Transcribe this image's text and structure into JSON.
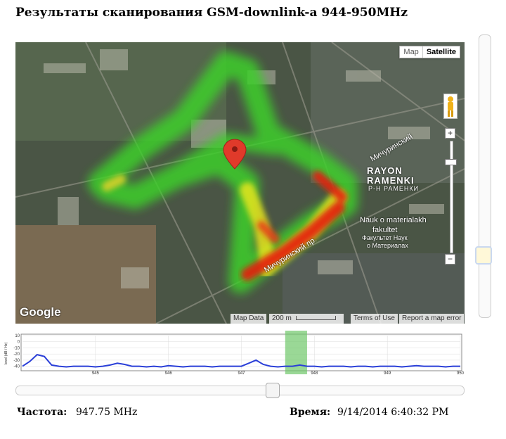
{
  "title": "Результаты сканирования GSM-downlink-a 944-950MHz",
  "map": {
    "type_map": "Map",
    "type_satellite": "Satellite",
    "google": "Google",
    "map_data": "Map Data",
    "scale": "200 m",
    "terms": "Terms of Use",
    "report": "Report a map error",
    "labels": {
      "district1": "RAYON",
      "district2": "RAMENKI",
      "district3": "Р-Н РАМЕНКИ",
      "street1": "Мичуринский",
      "street2": "Мичуринский пр.",
      "poi1": "Nauk o materialakh",
      "poi2": "fakultet",
      "poi3": "Факультет Наук",
      "poi4": "о Материалах"
    },
    "colors": {
      "low": "#3ecf2a",
      "mid": "#f0e81a",
      "high": "#e51a10",
      "marker": "#e03a2a"
    }
  },
  "chart_data": {
    "type": "line",
    "ylabel": "level (dB / Hz)",
    "yticks": [
      10,
      0,
      -10,
      -20,
      -30,
      -40
    ],
    "xticks": [
      945,
      946,
      947,
      948,
      949,
      950
    ],
    "xtick_labels": [
      "945",
      "946",
      "947",
      "948",
      "949",
      "950"
    ],
    "xlim": [
      944,
      950
    ],
    "ylim": [
      -45,
      10
    ],
    "highlight": [
      947.6,
      947.9
    ],
    "color": "#2a3fd8",
    "series": [
      {
        "x": [
          944.0,
          944.1,
          944.2,
          944.3,
          944.4,
          944.5,
          944.6,
          944.7,
          944.8,
          944.9,
          945.0,
          945.1,
          945.2,
          945.3,
          945.4,
          945.5,
          945.6,
          945.7,
          945.8,
          945.9,
          946.0,
          946.1,
          946.2,
          946.3,
          946.4,
          946.5,
          946.6,
          946.7,
          946.8,
          946.9,
          947.0,
          947.1,
          947.2,
          947.3,
          947.4,
          947.5,
          947.6,
          947.7,
          947.8,
          947.9,
          948.0,
          948.1,
          948.2,
          948.3,
          948.4,
          948.5,
          948.6,
          948.7,
          948.8,
          948.9,
          949.0,
          949.1,
          949.2,
          949.3,
          949.4,
          949.5,
          949.6,
          949.7,
          949.8,
          949.9,
          950.0
        ],
        "y": [
          -40,
          -32,
          -21,
          -24,
          -38,
          -40,
          -41,
          -40,
          -40,
          -40,
          -41,
          -40,
          -38,
          -35,
          -37,
          -40,
          -40,
          -41,
          -40,
          -41,
          -39,
          -40,
          -41,
          -40,
          -40,
          -40,
          -41,
          -40,
          -40,
          -40,
          -40,
          -35,
          -30,
          -37,
          -40,
          -41,
          -40,
          -40,
          -38,
          -40,
          -40,
          -41,
          -40,
          -40,
          -40,
          -41,
          -40,
          -40,
          -41,
          -40,
          -40,
          -40,
          -41,
          -40,
          -39,
          -40,
          -40,
          -40,
          -41,
          -40,
          -40
        ]
      }
    ]
  },
  "info": {
    "freq_label": "Частота:",
    "freq_value": "947.75 MHz",
    "time_label": "Время:",
    "time_value": "9/14/2014 6:40:32 PM"
  }
}
